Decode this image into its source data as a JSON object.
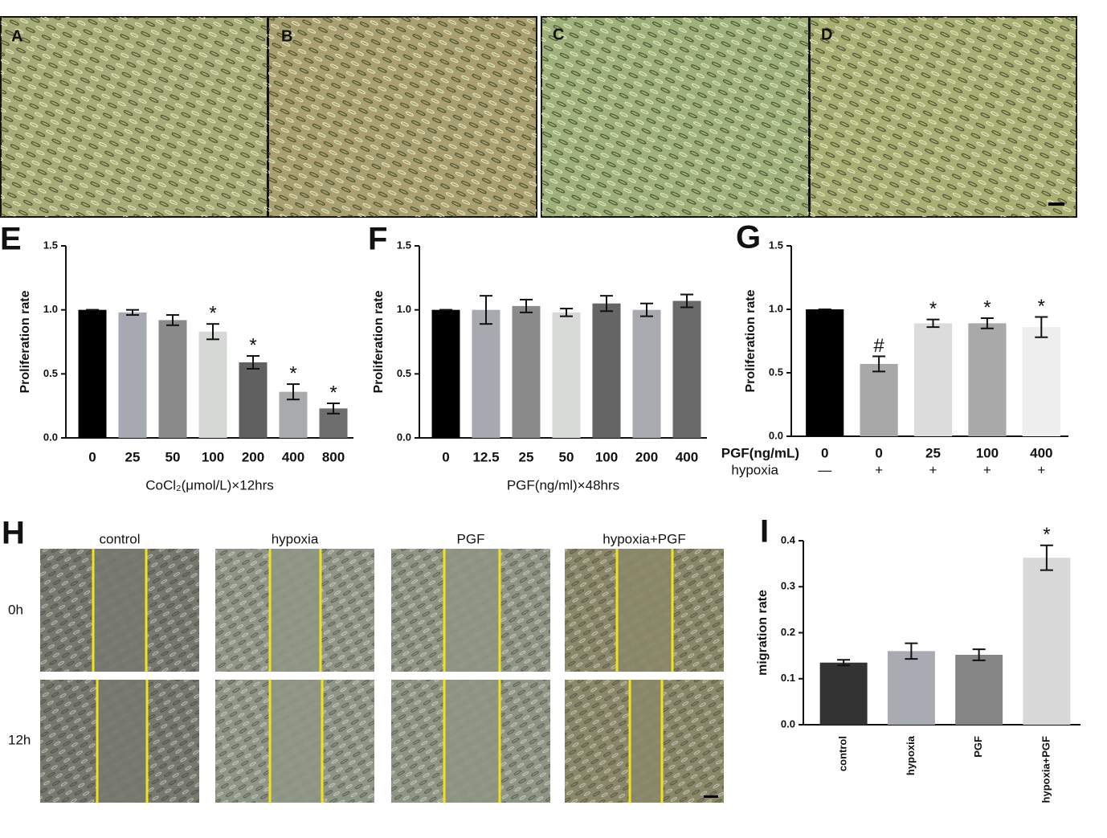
{
  "micrographs": [
    "A",
    "B",
    "C",
    "D"
  ],
  "wound": {
    "label": "H",
    "columns": [
      "control",
      "hypoxia",
      "PGF",
      "hypoxia+PGF"
    ],
    "rows": [
      "0h",
      "12h"
    ]
  },
  "chart_data": [
    {
      "type": "bar",
      "label": "E",
      "ylabel": "Proliferation rate",
      "xlabel": "CoCl₂(μmol/L)×12hrs",
      "categories": [
        "0",
        "25",
        "50",
        "100",
        "200",
        "400",
        "800"
      ],
      "values": [
        1.0,
        0.98,
        0.92,
        0.83,
        0.59,
        0.36,
        0.23
      ],
      "errors": [
        0,
        0.02,
        0.04,
        0.06,
        0.05,
        0.06,
        0.04
      ],
      "markers": [
        null,
        null,
        null,
        "*",
        "*",
        "*",
        "*"
      ],
      "colors": [
        "#000000",
        "#a6a9b1",
        "#8a8a8a",
        "#d6d8d6",
        "#606060",
        "#a9aaac",
        "#6e6e6e"
      ],
      "ylim": [
        0,
        1.5
      ],
      "yticks": [
        {
          "value": 0,
          "label": "0.0"
        },
        0.5,
        {
          "value": 1,
          "label": "1.0"
        },
        1.5
      ]
    },
    {
      "type": "bar",
      "label": "F",
      "ylabel": "Proliferation rate",
      "xlabel": "PGF(ng/ml)×48hrs",
      "categories": [
        "0",
        "12.5",
        "25",
        "50",
        "100",
        "200",
        "400"
      ],
      "values": [
        1.0,
        1.0,
        1.03,
        0.98,
        1.05,
        1.0,
        1.07
      ],
      "errors": [
        0,
        0.11,
        0.05,
        0.03,
        0.06,
        0.05,
        0.05
      ],
      "colors": [
        "#000000",
        "#a7a9b1",
        "#8a8a8a",
        "#d8dad8",
        "#656565",
        "#a8aab0",
        "#6a6a6a"
      ],
      "ylim": [
        0,
        1.5
      ],
      "yticks": [
        {
          "value": 0,
          "label": "0.0"
        },
        0.5,
        {
          "value": 1,
          "label": "1.0"
        },
        1.5
      ]
    },
    {
      "type": "bar",
      "label": "G",
      "ylabel": "Proliferation rate",
      "category_title": "PGF(ng/mL)",
      "categories": [
        "0",
        "0",
        "25",
        "100",
        "400"
      ],
      "hypoxia_title": "hypoxia",
      "hypoxia": [
        "—",
        "+",
        "+",
        "+",
        "+"
      ],
      "values": [
        1.0,
        0.57,
        0.89,
        0.89,
        0.86
      ],
      "errors": [
        0,
        0.06,
        0.03,
        0.04,
        0.08
      ],
      "markers": [
        null,
        "#",
        "*",
        "*",
        "*"
      ],
      "colors": [
        "#000000",
        "#a8a8a8",
        "#dcdcdc",
        "#a9a9a9",
        "#eeeeee"
      ],
      "ylim": [
        0,
        1.5
      ],
      "yticks": [
        {
          "value": 0,
          "label": "0.0"
        },
        0.5,
        {
          "value": 1,
          "label": "1.0"
        },
        1.5
      ]
    },
    {
      "type": "bar",
      "label": "I",
      "ylabel": "migration rate",
      "categories": [
        "control",
        "hypoxia",
        "PGF",
        "hypoxia+PGF"
      ],
      "values": [
        0.135,
        0.16,
        0.152,
        0.363
      ],
      "errors": [
        0.006,
        0.017,
        0.012,
        0.027
      ],
      "markers": [
        null,
        null,
        null,
        "*"
      ],
      "colors": [
        "#333333",
        "#a8abb2",
        "#858585",
        "#d8d8d8"
      ],
      "ylim": [
        0,
        0.4
      ],
      "yticks": [
        {
          "value": 0,
          "label": "0.0"
        },
        0.1,
        0.2,
        0.3,
        0.4
      ]
    }
  ]
}
